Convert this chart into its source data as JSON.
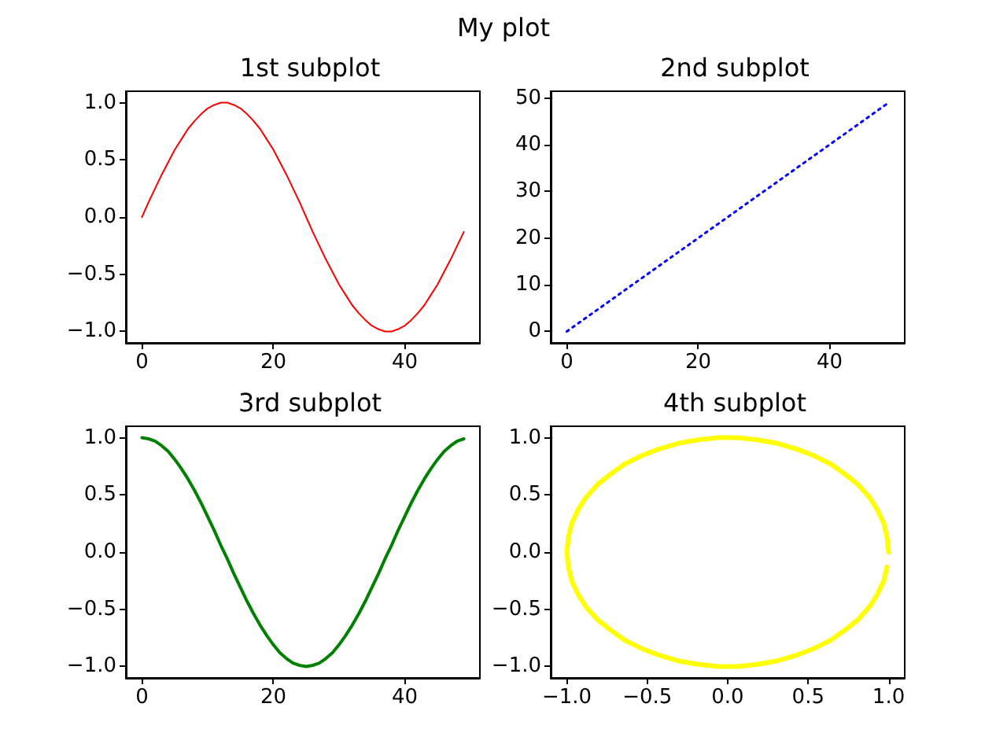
{
  "chart_data": [
    {
      "type": "line",
      "title": "1st subplot",
      "annotations": [
        "My plot"
      ],
      "line_style": "solid",
      "marker": "none",
      "grid": false,
      "xlim": [
        -2.45,
        51.45
      ],
      "ylim": [
        -1.1,
        1.1
      ],
      "xticks": [
        {
          "value": 0,
          "label": "0"
        },
        {
          "value": 20,
          "label": "20"
        },
        {
          "value": 40,
          "label": "40"
        }
      ],
      "yticks": [
        {
          "value": -1,
          "label": "−1.0"
        },
        {
          "value": -0.5,
          "label": "−0.5"
        },
        {
          "value": 0,
          "label": "0.0"
        },
        {
          "value": 0.5,
          "label": "0.5"
        },
        {
          "value": 1,
          "label": "1.0"
        }
      ],
      "x": [
        0,
        1,
        2,
        3,
        4,
        5,
        6,
        7,
        8,
        9,
        10,
        11,
        12,
        13,
        14,
        15,
        16,
        17,
        18,
        19,
        20,
        21,
        22,
        23,
        24,
        25,
        26,
        27,
        28,
        29,
        30,
        31,
        32,
        33,
        34,
        35,
        36,
        37,
        38,
        39,
        40,
        41,
        42,
        43,
        44,
        45,
        46,
        47,
        48,
        49
      ],
      "series": [
        {
          "color": "#ff0000",
          "values": [
            0,
            0.13,
            0.25,
            0.37,
            0.48,
            0.59,
            0.68,
            0.77,
            0.84,
            0.9,
            0.95,
            0.98,
            1,
            1,
            0.98,
            0.95,
            0.9,
            0.84,
            0.77,
            0.68,
            0.59,
            0.48,
            0.37,
            0.25,
            0.13,
            0,
            -0.13,
            -0.25,
            -0.37,
            -0.48,
            -0.59,
            -0.68,
            -0.77,
            -0.84,
            -0.9,
            -0.95,
            -0.98,
            -1,
            -1,
            -0.98,
            -0.95,
            -0.9,
            -0.84,
            -0.77,
            -0.68,
            -0.59,
            -0.48,
            -0.37,
            -0.25,
            -0.13
          ]
        }
      ]
    },
    {
      "type": "line",
      "title": "2nd subplot",
      "line_style": "dotted",
      "marker": "none",
      "grid": false,
      "xlim": [
        -2.45,
        51.45
      ],
      "ylim": [
        -2.45,
        51.45
      ],
      "xticks": [
        {
          "value": 0,
          "label": "0"
        },
        {
          "value": 20,
          "label": "20"
        },
        {
          "value": 40,
          "label": "40"
        }
      ],
      "yticks": [
        {
          "value": 0,
          "label": "0"
        },
        {
          "value": 10,
          "label": "10"
        },
        {
          "value": 20,
          "label": "20"
        },
        {
          "value": 30,
          "label": "30"
        },
        {
          "value": 40,
          "label": "40"
        },
        {
          "value": 50,
          "label": "50"
        }
      ],
      "x": [
        0,
        1,
        2,
        3,
        4,
        5,
        6,
        7,
        8,
        9,
        10,
        11,
        12,
        13,
        14,
        15,
        16,
        17,
        18,
        19,
        20,
        21,
        22,
        23,
        24,
        25,
        26,
        27,
        28,
        29,
        30,
        31,
        32,
        33,
        34,
        35,
        36,
        37,
        38,
        39,
        40,
        41,
        42,
        43,
        44,
        45,
        46,
        47,
        48,
        49
      ],
      "series": [
        {
          "color": "#0000ff",
          "values": [
            0,
            1,
            2,
            3,
            4,
            5,
            6,
            7,
            8,
            9,
            10,
            11,
            12,
            13,
            14,
            15,
            16,
            17,
            18,
            19,
            20,
            21,
            22,
            23,
            24,
            25,
            26,
            27,
            28,
            29,
            30,
            31,
            32,
            33,
            34,
            35,
            36,
            37,
            38,
            39,
            40,
            41,
            42,
            43,
            44,
            45,
            46,
            47,
            48,
            49
          ]
        }
      ]
    },
    {
      "type": "line",
      "title": "3rd subplot",
      "line_style": "solid",
      "marker": "none",
      "grid": false,
      "xlim": [
        -2.45,
        51.45
      ],
      "ylim": [
        -1.1,
        1.1
      ],
      "xticks": [
        {
          "value": 0,
          "label": "0"
        },
        {
          "value": 20,
          "label": "20"
        },
        {
          "value": 40,
          "label": "40"
        }
      ],
      "yticks": [
        {
          "value": -1,
          "label": "−1.0"
        },
        {
          "value": -0.5,
          "label": "−0.5"
        },
        {
          "value": 0,
          "label": "0.0"
        },
        {
          "value": 0.5,
          "label": "0.5"
        },
        {
          "value": 1,
          "label": "1.0"
        }
      ],
      "x": [
        0,
        1,
        2,
        3,
        4,
        5,
        6,
        7,
        8,
        9,
        10,
        11,
        12,
        13,
        14,
        15,
        16,
        17,
        18,
        19,
        20,
        21,
        22,
        23,
        24,
        25,
        26,
        27,
        28,
        29,
        30,
        31,
        32,
        33,
        34,
        35,
        36,
        37,
        38,
        39,
        40,
        41,
        42,
        43,
        44,
        45,
        46,
        47,
        48,
        49
      ],
      "series": [
        {
          "color": "#008000",
          "values": [
            1,
            0.99,
            0.97,
            0.93,
            0.88,
            0.81,
            0.73,
            0.64,
            0.54,
            0.43,
            0.31,
            0.19,
            0.06,
            -0.06,
            -0.19,
            -0.31,
            -0.43,
            -0.54,
            -0.64,
            -0.73,
            -0.81,
            -0.88,
            -0.93,
            -0.97,
            -0.99,
            -1,
            -0.99,
            -0.97,
            -0.93,
            -0.88,
            -0.81,
            -0.73,
            -0.64,
            -0.54,
            -0.43,
            -0.31,
            -0.19,
            -0.06,
            0.06,
            0.19,
            0.31,
            0.43,
            0.54,
            0.64,
            0.73,
            0.81,
            0.88,
            0.93,
            0.97,
            0.99
          ]
        }
      ]
    },
    {
      "type": "line",
      "title": "4th subplot",
      "line_style": "solid",
      "marker": "none",
      "grid": false,
      "xlim": [
        -1.1,
        1.1
      ],
      "ylim": [
        -1.1,
        1.1
      ],
      "xticks": [
        {
          "value": -1,
          "label": "−1.0"
        },
        {
          "value": -0.5,
          "label": "−0.5"
        },
        {
          "value": 0,
          "label": "0.0"
        },
        {
          "value": 0.5,
          "label": "0.5"
        },
        {
          "value": 1,
          "label": "1.0"
        }
      ],
      "yticks": [
        {
          "value": -1,
          "label": "−1.0"
        },
        {
          "value": -0.5,
          "label": "−0.5"
        },
        {
          "value": 0,
          "label": "0.0"
        },
        {
          "value": 0.5,
          "label": "0.5"
        },
        {
          "value": 1,
          "label": "1.0"
        }
      ],
      "x": [
        1,
        0.99,
        0.97,
        0.93,
        0.88,
        0.81,
        0.73,
        0.64,
        0.54,
        0.43,
        0.31,
        0.19,
        0.06,
        -0.06,
        -0.19,
        -0.31,
        -0.43,
        -0.54,
        -0.64,
        -0.73,
        -0.81,
        -0.88,
        -0.93,
        -0.97,
        -0.99,
        -1,
        -0.99,
        -0.97,
        -0.93,
        -0.88,
        -0.81,
        -0.73,
        -0.64,
        -0.54,
        -0.43,
        -0.31,
        -0.19,
        -0.06,
        0.06,
        0.19,
        0.31,
        0.43,
        0.54,
        0.64,
        0.73,
        0.81,
        0.88,
        0.93,
        0.97,
        0.99
      ],
      "series": [
        {
          "color": "#ffff00",
          "values": [
            0,
            0.13,
            0.25,
            0.37,
            0.48,
            0.59,
            0.68,
            0.77,
            0.84,
            0.9,
            0.95,
            0.98,
            1,
            1,
            0.98,
            0.95,
            0.9,
            0.84,
            0.77,
            0.68,
            0.59,
            0.48,
            0.37,
            0.25,
            0.13,
            0,
            -0.13,
            -0.25,
            -0.37,
            -0.48,
            -0.59,
            -0.68,
            -0.77,
            -0.84,
            -0.9,
            -0.95,
            -0.98,
            -1,
            -1,
            -0.98,
            -0.95,
            -0.9,
            -0.84,
            -0.77,
            -0.68,
            -0.59,
            -0.48,
            -0.37,
            -0.25,
            -0.13
          ]
        }
      ]
    }
  ]
}
